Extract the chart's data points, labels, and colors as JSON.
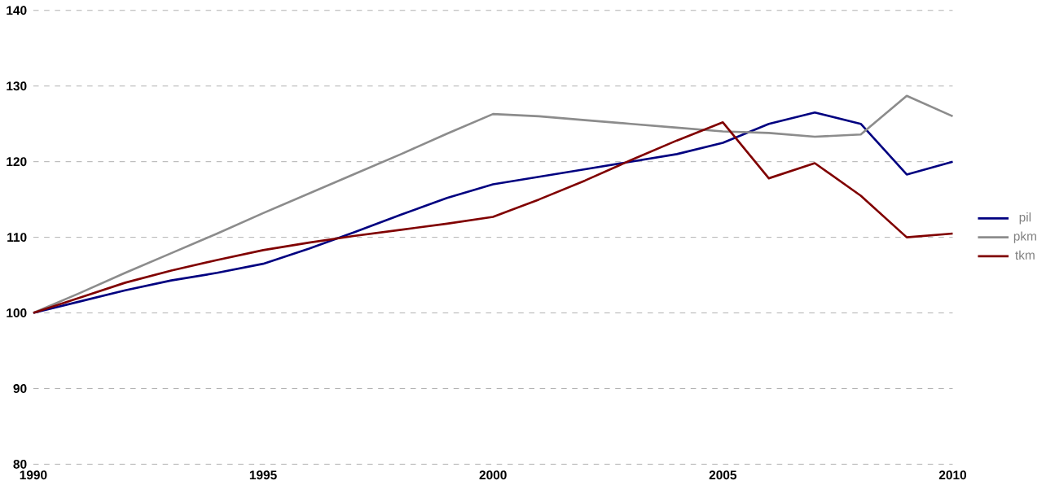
{
  "chart_data": {
    "type": "line",
    "x": [
      1990,
      1991,
      1992,
      1993,
      1994,
      1995,
      1996,
      1997,
      1998,
      1999,
      2000,
      2001,
      2002,
      2003,
      2004,
      2005,
      2006,
      2007,
      2008,
      2009,
      2010
    ],
    "series": [
      {
        "name": "pil",
        "color": "#000080",
        "values": [
          100,
          101.5,
          103,
          104.3,
          105.3,
          106.5,
          108.5,
          110.7,
          113,
          115.2,
          117,
          118,
          119,
          120,
          121,
          122.5,
          125,
          126.5,
          125,
          118.3,
          120
        ]
      },
      {
        "name": "pkm",
        "color": "#8c8c8c",
        "values": [
          100,
          102.6,
          105.3,
          107.9,
          110.5,
          113.2,
          115.8,
          118.4,
          121,
          123.7,
          126.3,
          126,
          125.5,
          125,
          124.5,
          124,
          123.8,
          123.3,
          123.6,
          128.7,
          126
        ]
      },
      {
        "name": "tkm",
        "color": "#800000",
        "values": [
          100,
          102,
          104,
          105.6,
          107,
          108.3,
          109.3,
          110.2,
          111,
          111.8,
          112.7,
          115,
          117.5,
          120.2,
          122.8,
          125.2,
          117.8,
          119.8,
          115.5,
          110,
          110.5
        ]
      }
    ],
    "xlim": [
      1990,
      2010
    ],
    "xticks": [
      1990,
      1995,
      2000,
      2005,
      2010
    ],
    "ylim": [
      80,
      140
    ],
    "yticks": [
      80,
      90,
      100,
      110,
      120,
      130,
      140
    ],
    "grid": "y",
    "legend": "right",
    "marker": "none",
    "line_style": "solid"
  }
}
